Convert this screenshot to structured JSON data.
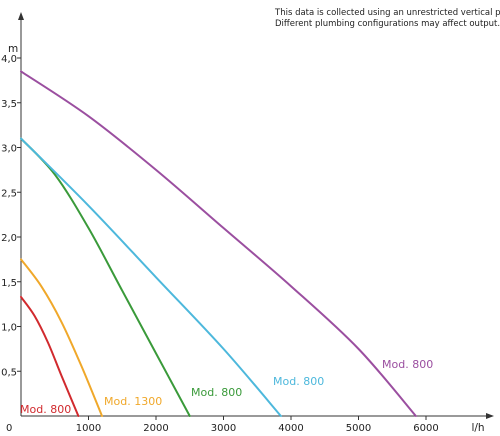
{
  "chart_data": {
    "type": "line",
    "note_lines": [
      "This data is collected using an unrestricted vertical pipe.",
      "Different plumbing configurations may affect output."
    ],
    "xlabel": "l/h",
    "ylabel": "m",
    "xlim": [
      0,
      7000
    ],
    "ylim": [
      0,
      4.3
    ],
    "x_ticks": [
      {
        "value": 0,
        "label": "0"
      },
      {
        "value": 1000,
        "label": "1000"
      },
      {
        "value": 2000,
        "label": "2000"
      },
      {
        "value": 3000,
        "label": "3000"
      },
      {
        "value": 4000,
        "label": "4000"
      },
      {
        "value": 5000,
        "label": "5000"
      },
      {
        "value": 6000,
        "label": "6000"
      }
    ],
    "y_ticks": [
      {
        "value": 0.5,
        "label": "0,5"
      },
      {
        "value": 1.0,
        "label": "1,0"
      },
      {
        "value": 1.5,
        "label": "1,5"
      },
      {
        "value": 2.0,
        "label": "2,0"
      },
      {
        "value": 2.5,
        "label": "2,5"
      },
      {
        "value": 3.0,
        "label": "3,0"
      },
      {
        "value": 3.5,
        "label": "3,5"
      },
      {
        "value": 4.0,
        "label": "4,0"
      }
    ],
    "grid": false,
    "series": [
      {
        "name": "Mod. 800",
        "color": "#d12a2e",
        "x": [
          0,
          200,
          400,
          600,
          850
        ],
        "y": [
          1.33,
          1.12,
          0.82,
          0.45,
          0.0
        ]
      },
      {
        "name": "Mod. 1300",
        "color": "#f0a82a",
        "x": [
          0,
          300,
          600,
          900,
          1200
        ],
        "y": [
          1.75,
          1.45,
          1.05,
          0.55,
          0.0
        ]
      },
      {
        "name": "Mod. 800",
        "color": "#3a9a3a",
        "x": [
          0,
          500,
          1000,
          1500,
          2000,
          2500
        ],
        "y": [
          3.1,
          2.7,
          2.1,
          1.4,
          0.7,
          0.0
        ]
      },
      {
        "name": "Mod. 800",
        "color": "#4db8dc",
        "x": [
          0,
          1000,
          2000,
          3000,
          3850
        ],
        "y": [
          3.1,
          2.35,
          1.55,
          0.75,
          0.0
        ]
      },
      {
        "name": "Mod. 800",
        "color": "#9b4fa0",
        "x": [
          0,
          1000,
          2000,
          3000,
          4000,
          5000,
          5850
        ],
        "y": [
          3.85,
          3.35,
          2.75,
          2.1,
          1.45,
          0.75,
          0.0
        ]
      }
    ]
  }
}
